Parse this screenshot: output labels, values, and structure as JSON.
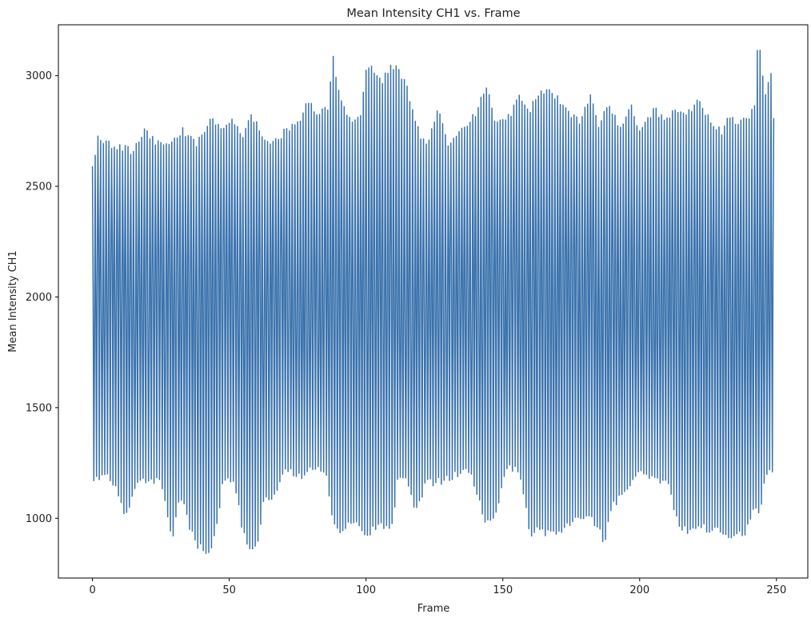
{
  "chart_data": {
    "type": "line",
    "title": "Mean Intensity CH1 vs. Frame",
    "xlabel": "Frame",
    "ylabel": "Mean Intensity CH1",
    "xlim": [
      -12.45,
      261.45
    ],
    "ylim": [
      730,
      3230
    ],
    "xticks": [
      0,
      50,
      100,
      150,
      200,
      250
    ],
    "yticks": [
      1000,
      1500,
      2000,
      2500,
      3000
    ],
    "grid": false,
    "series": [
      {
        "color": "#3a72ad",
        "x_start": 0,
        "x_end": 249,
        "mid": 2000,
        "upper_envelope": [
          [
            0,
            2620
          ],
          [
            2,
            2730
          ],
          [
            5,
            2710
          ],
          [
            10,
            2690
          ],
          [
            15,
            2680
          ],
          [
            19,
            2780
          ],
          [
            25,
            2700
          ],
          [
            30,
            2720
          ],
          [
            33,
            2780
          ],
          [
            38,
            2700
          ],
          [
            43,
            2830
          ],
          [
            47,
            2780
          ],
          [
            50,
            2820
          ],
          [
            55,
            2760
          ],
          [
            58,
            2840
          ],
          [
            62,
            2760
          ],
          [
            65,
            2700
          ],
          [
            70,
            2760
          ],
          [
            75,
            2800
          ],
          [
            78,
            2900
          ],
          [
            83,
            2850
          ],
          [
            86,
            2880
          ],
          [
            88,
            3120
          ],
          [
            89,
            3020
          ],
          [
            91,
            2920
          ],
          [
            94,
            2830
          ],
          [
            98,
            2830
          ],
          [
            100,
            3050
          ],
          [
            103,
            3050
          ],
          [
            106,
            2980
          ],
          [
            109,
            3080
          ],
          [
            112,
            3040
          ],
          [
            115,
            2960
          ],
          [
            118,
            2800
          ],
          [
            122,
            2700
          ],
          [
            126,
            2870
          ],
          [
            130,
            2700
          ],
          [
            135,
            2780
          ],
          [
            140,
            2850
          ],
          [
            144,
            2970
          ],
          [
            147,
            2820
          ],
          [
            152,
            2830
          ],
          [
            156,
            2920
          ],
          [
            160,
            2870
          ],
          [
            164,
            2940
          ],
          [
            167,
            2960
          ],
          [
            170,
            2920
          ],
          [
            174,
            2860
          ],
          [
            178,
            2800
          ],
          [
            182,
            2920
          ],
          [
            185,
            2800
          ],
          [
            189,
            2880
          ],
          [
            193,
            2780
          ],
          [
            197,
            2870
          ],
          [
            200,
            2760
          ],
          [
            205,
            2870
          ],
          [
            210,
            2820
          ],
          [
            212,
            2870
          ],
          [
            216,
            2850
          ],
          [
            220,
            2870
          ],
          [
            222,
            2910
          ],
          [
            226,
            2800
          ],
          [
            230,
            2760
          ],
          [
            233,
            2840
          ],
          [
            237,
            2800
          ],
          [
            240,
            2830
          ],
          [
            242,
            2890
          ],
          [
            243,
            3120
          ],
          [
            244,
            3130
          ],
          [
            246,
            2940
          ],
          [
            248,
            3040
          ],
          [
            249,
            2810
          ]
        ],
        "lower_envelope": [
          [
            0,
            1160
          ],
          [
            5,
            1170
          ],
          [
            10,
            1080
          ],
          [
            12,
            980
          ],
          [
            15,
            1120
          ],
          [
            20,
            1150
          ],
          [
            25,
            1150
          ],
          [
            29,
            870
          ],
          [
            32,
            1100
          ],
          [
            35,
            960
          ],
          [
            38,
            860
          ],
          [
            41,
            830
          ],
          [
            44,
            840
          ],
          [
            48,
            1170
          ],
          [
            52,
            1130
          ],
          [
            55,
            920
          ],
          [
            58,
            840
          ],
          [
            60,
            860
          ],
          [
            63,
            1080
          ],
          [
            66,
            1060
          ],
          [
            70,
            1200
          ],
          [
            75,
            1170
          ],
          [
            80,
            1200
          ],
          [
            85,
            1200
          ],
          [
            88,
            970
          ],
          [
            91,
            920
          ],
          [
            95,
            960
          ],
          [
            100,
            920
          ],
          [
            103,
            930
          ],
          [
            106,
            950
          ],
          [
            109,
            920
          ],
          [
            112,
            1180
          ],
          [
            115,
            1160
          ],
          [
            118,
            1020
          ],
          [
            122,
            1140
          ],
          [
            128,
            1150
          ],
          [
            133,
            1180
          ],
          [
            138,
            1190
          ],
          [
            144,
            960
          ],
          [
            147,
            970
          ],
          [
            151,
            1210
          ],
          [
            156,
            1200
          ],
          [
            160,
            910
          ],
          [
            162,
            930
          ],
          [
            167,
            910
          ],
          [
            170,
            910
          ],
          [
            175,
            960
          ],
          [
            178,
            970
          ],
          [
            181,
            1000
          ],
          [
            184,
            960
          ],
          [
            187,
            870
          ],
          [
            190,
            1030
          ],
          [
            195,
            1120
          ],
          [
            200,
            1180
          ],
          [
            205,
            1160
          ],
          [
            210,
            1150
          ],
          [
            214,
            950
          ],
          [
            217,
            930
          ],
          [
            221,
            940
          ],
          [
            226,
            930
          ],
          [
            230,
            920
          ],
          [
            233,
            905
          ],
          [
            236,
            910
          ],
          [
            239,
            920
          ],
          [
            242,
            1030
          ],
          [
            244,
            980
          ],
          [
            246,
            1180
          ],
          [
            249,
            1190
          ]
        ]
      }
    ]
  }
}
